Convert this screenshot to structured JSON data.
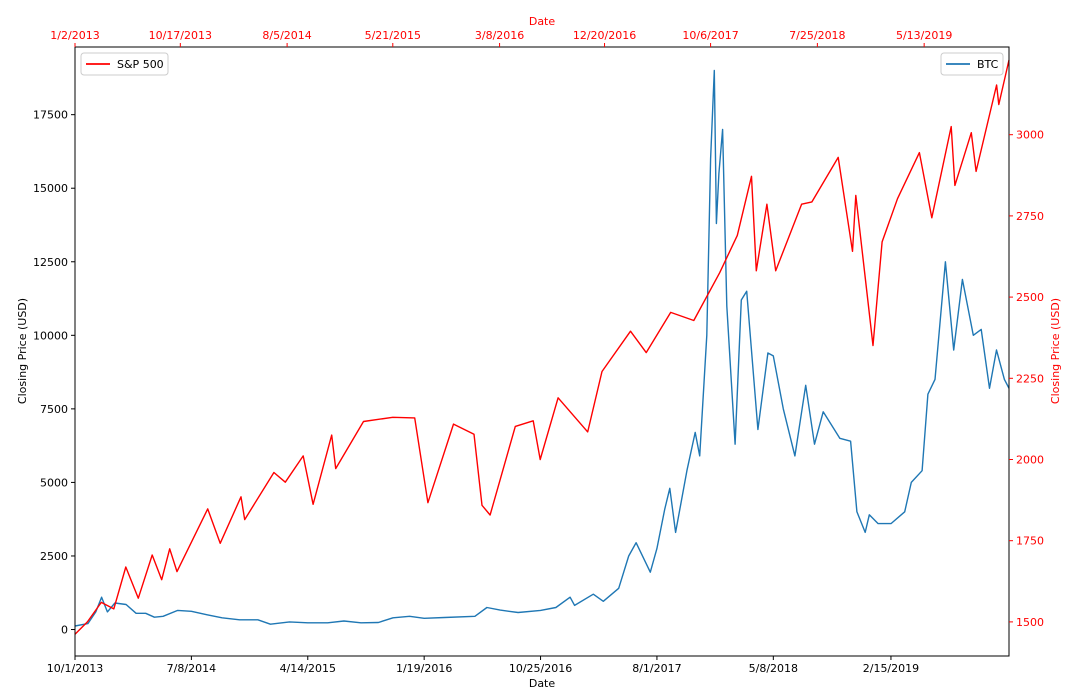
{
  "chart_data": {
    "type": "line",
    "colors": {
      "btc": "#1f77b4",
      "sp500": "#ff0000"
    },
    "axes": {
      "bottom": {
        "label": "Date",
        "ticks": [
          "10/1/2013",
          "7/8/2014",
          "4/14/2015",
          "1/19/2016",
          "10/25/2016",
          "8/1/2017",
          "5/8/2018",
          "2/15/2019"
        ],
        "range": [
          "2013-10-01",
          "2019-11-26"
        ]
      },
      "top": {
        "label": "Date",
        "color": "#ff0000",
        "ticks": [
          "1/2/2013",
          "10/17/2013",
          "8/5/2014",
          "5/21/2015",
          "3/8/2016",
          "12/20/2016",
          "10/6/2017",
          "7/25/2018",
          "5/13/2019"
        ],
        "range": [
          "2013-01-02",
          "2019-12-31"
        ]
      },
      "left": {
        "label": "Closing Price (USD)",
        "ticks": [
          "0",
          "2500",
          "5000",
          "7500",
          "10000",
          "12500",
          "15000",
          "17500"
        ],
        "ylim": [
          -900,
          19800
        ]
      },
      "right": {
        "label": "Closing Price (USD)",
        "color": "#ff0000",
        "ticks": [
          "1500",
          "1750",
          "2000",
          "2250",
          "2500",
          "2750",
          "3000"
        ],
        "ylim": [
          1395,
          3270
        ]
      }
    },
    "legends": [
      {
        "name": "S&P 500",
        "placement": "top-left"
      },
      {
        "name": "BTC",
        "placement": "top-right"
      }
    ],
    "series": [
      {
        "name": "BTC",
        "x_axis": "bottom",
        "y_axis": "left",
        "points": [
          [
            "2013-10-01",
            120
          ],
          [
            "2013-11-01",
            200
          ],
          [
            "2013-11-20",
            600
          ],
          [
            "2013-12-04",
            1100
          ],
          [
            "2013-12-18",
            600
          ],
          [
            "2014-01-05",
            900
          ],
          [
            "2014-02-01",
            850
          ],
          [
            "2014-02-25",
            550
          ],
          [
            "2014-03-20",
            550
          ],
          [
            "2014-04-10",
            420
          ],
          [
            "2014-05-01",
            450
          ],
          [
            "2014-06-05",
            650
          ],
          [
            "2014-07-08",
            620
          ],
          [
            "2014-08-15",
            500
          ],
          [
            "2014-09-20",
            400
          ],
          [
            "2014-11-01",
            330
          ],
          [
            "2014-12-15",
            330
          ],
          [
            "2015-01-14",
            180
          ],
          [
            "2015-03-01",
            260
          ],
          [
            "2015-04-14",
            230
          ],
          [
            "2015-06-01",
            230
          ],
          [
            "2015-07-10",
            290
          ],
          [
            "2015-08-20",
            230
          ],
          [
            "2015-10-01",
            240
          ],
          [
            "2015-11-05",
            400
          ],
          [
            "2015-12-15",
            450
          ],
          [
            "2016-01-19",
            380
          ],
          [
            "2016-03-08",
            410
          ],
          [
            "2016-05-20",
            450
          ],
          [
            "2016-06-18",
            750
          ],
          [
            "2016-07-20",
            660
          ],
          [
            "2016-09-01",
            580
          ],
          [
            "2016-10-25",
            650
          ],
          [
            "2016-12-01",
            750
          ],
          [
            "2017-01-04",
            1100
          ],
          [
            "2017-01-15",
            820
          ],
          [
            "2017-03-01",
            1200
          ],
          [
            "2017-03-25",
            960
          ],
          [
            "2017-05-01",
            1400
          ],
          [
            "2017-05-25",
            2500
          ],
          [
            "2017-06-12",
            2950
          ],
          [
            "2017-07-16",
            1950
          ],
          [
            "2017-08-01",
            2750
          ],
          [
            "2017-08-20",
            4100
          ],
          [
            "2017-09-01",
            4800
          ],
          [
            "2017-09-15",
            3300
          ],
          [
            "2017-10-12",
            5400
          ],
          [
            "2017-11-01",
            6700
          ],
          [
            "2017-11-12",
            5900
          ],
          [
            "2017-11-29",
            10000
          ],
          [
            "2017-12-08",
            16000
          ],
          [
            "2017-12-17",
            19000
          ],
          [
            "2017-12-22",
            13800
          ],
          [
            "2017-12-28",
            15500
          ],
          [
            "2018-01-06",
            17000
          ],
          [
            "2018-01-16",
            11000
          ],
          [
            "2018-02-05",
            6300
          ],
          [
            "2018-02-20",
            11200
          ],
          [
            "2018-03-05",
            11500
          ],
          [
            "2018-04-01",
            6800
          ],
          [
            "2018-04-25",
            9400
          ],
          [
            "2018-05-08",
            9300
          ],
          [
            "2018-06-01",
            7500
          ],
          [
            "2018-06-29",
            5900
          ],
          [
            "2018-07-25",
            8300
          ],
          [
            "2018-08-15",
            6300
          ],
          [
            "2018-09-05",
            7400
          ],
          [
            "2018-10-15",
            6500
          ],
          [
            "2018-11-10",
            6400
          ],
          [
            "2018-11-25",
            4000
          ],
          [
            "2018-12-15",
            3300
          ],
          [
            "2018-12-25",
            3900
          ],
          [
            "2019-01-15",
            3600
          ],
          [
            "2019-02-15",
            3600
          ],
          [
            "2019-03-20",
            4000
          ],
          [
            "2019-04-05",
            5000
          ],
          [
            "2019-05-01",
            5400
          ],
          [
            "2019-05-15",
            8000
          ],
          [
            "2019-06-01",
            8500
          ],
          [
            "2019-06-26",
            12500
          ],
          [
            "2019-07-16",
            9500
          ],
          [
            "2019-08-06",
            11900
          ],
          [
            "2019-09-01",
            10000
          ],
          [
            "2019-09-20",
            10200
          ],
          [
            "2019-10-10",
            8200
          ],
          [
            "2019-10-27",
            9500
          ],
          [
            "2019-11-15",
            8500
          ],
          [
            "2019-11-26",
            8200
          ]
        ]
      },
      {
        "name": "S&P 500",
        "x_axis": "top",
        "y_axis": "right",
        "points": [
          [
            "2013-01-02",
            1462
          ],
          [
            "2013-02-05",
            1500
          ],
          [
            "2013-03-15",
            1560
          ],
          [
            "2013-04-18",
            1540
          ],
          [
            "2013-05-21",
            1669
          ],
          [
            "2013-06-24",
            1573
          ],
          [
            "2013-08-01",
            1706
          ],
          [
            "2013-08-27",
            1630
          ],
          [
            "2013-09-18",
            1725
          ],
          [
            "2013-10-08",
            1655
          ],
          [
            "2013-12-31",
            1848
          ],
          [
            "2014-02-03",
            1742
          ],
          [
            "2014-04-01",
            1885
          ],
          [
            "2014-04-11",
            1815
          ],
          [
            "2014-06-30",
            1960
          ],
          [
            "2014-07-31",
            1930
          ],
          [
            "2014-09-18",
            2011
          ],
          [
            "2014-10-15",
            1862
          ],
          [
            "2014-12-05",
            2075
          ],
          [
            "2014-12-16",
            1972
          ],
          [
            "2015-03-02",
            2117
          ],
          [
            "2015-05-21",
            2130
          ],
          [
            "2015-07-20",
            2128
          ],
          [
            "2015-08-25",
            1867
          ],
          [
            "2015-11-03",
            2109
          ],
          [
            "2015-12-29",
            2078
          ],
          [
            "2016-01-20",
            1859
          ],
          [
            "2016-02-11",
            1829
          ],
          [
            "2016-04-20",
            2102
          ],
          [
            "2016-06-08",
            2119
          ],
          [
            "2016-06-27",
            2000
          ],
          [
            "2016-08-15",
            2190
          ],
          [
            "2016-11-04",
            2085
          ],
          [
            "2016-12-13",
            2271
          ],
          [
            "2017-03-01",
            2395
          ],
          [
            "2017-04-13",
            2329
          ],
          [
            "2017-06-19",
            2453
          ],
          [
            "2017-08-21",
            2428
          ],
          [
            "2017-10-31",
            2575
          ],
          [
            "2017-12-18",
            2690
          ],
          [
            "2018-01-26",
            2872
          ],
          [
            "2018-02-08",
            2581
          ],
          [
            "2018-03-09",
            2786
          ],
          [
            "2018-04-02",
            2581
          ],
          [
            "2018-06-12",
            2786
          ],
          [
            "2018-07-10",
            2793
          ],
          [
            "2018-09-20",
            2930
          ],
          [
            "2018-10-29",
            2641
          ],
          [
            "2018-11-07",
            2813
          ],
          [
            "2018-12-24",
            2351
          ],
          [
            "2019-01-18",
            2670
          ],
          [
            "2019-03-01",
            2803
          ],
          [
            "2019-04-30",
            2945
          ],
          [
            "2019-06-03",
            2744
          ],
          [
            "2019-07-26",
            3025
          ],
          [
            "2019-08-05",
            2844
          ],
          [
            "2019-09-19",
            3006
          ],
          [
            "2019-10-02",
            2887
          ],
          [
            "2019-11-27",
            3153
          ],
          [
            "2019-12-03",
            3093
          ],
          [
            "2019-12-31",
            3230
          ]
        ]
      }
    ]
  }
}
